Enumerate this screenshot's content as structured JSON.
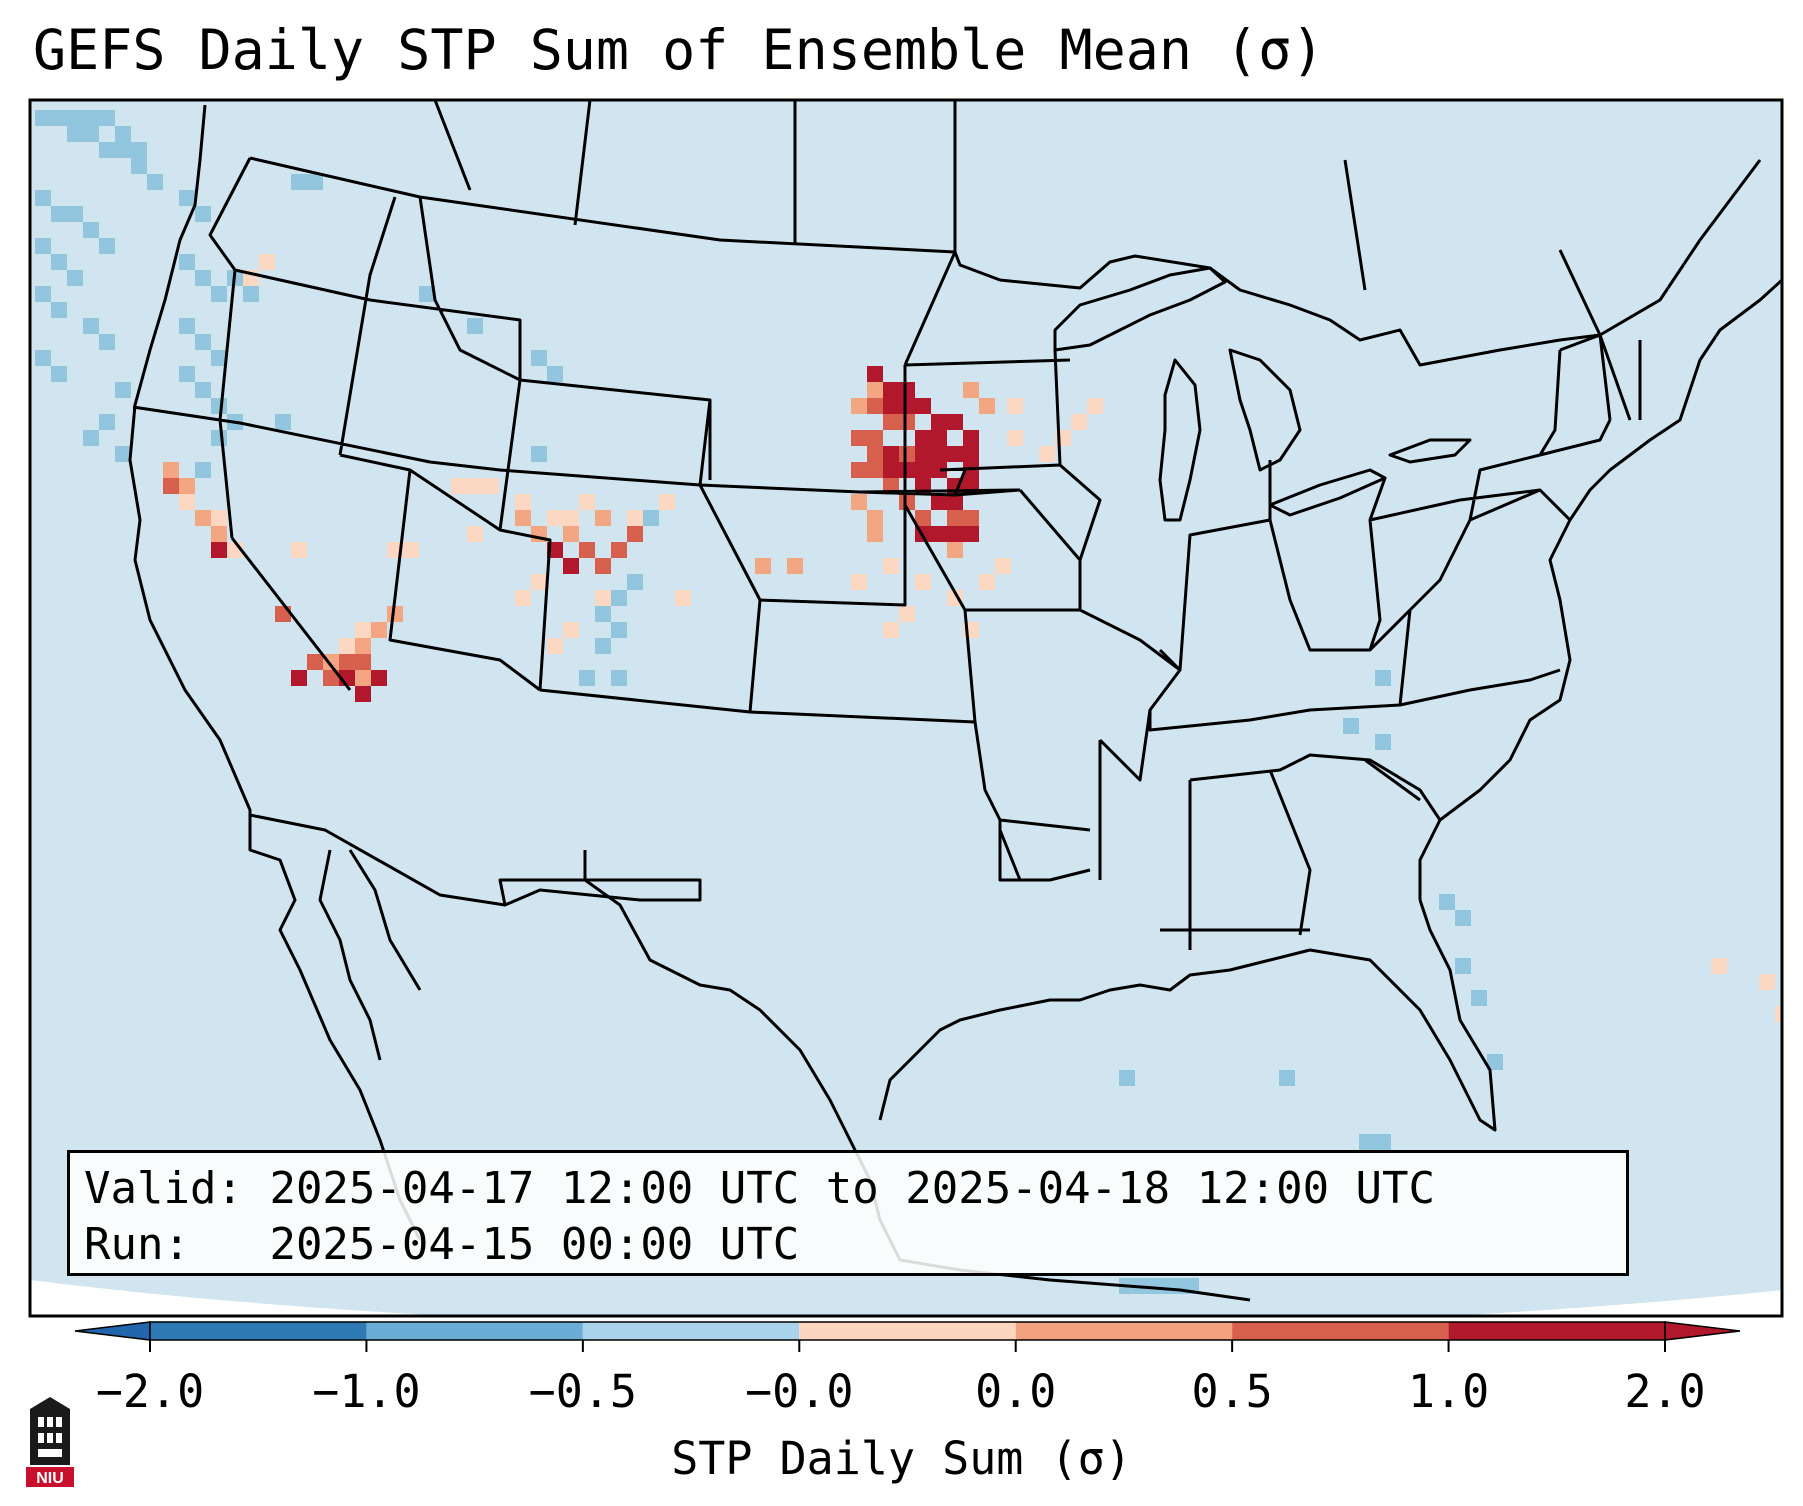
{
  "title": "GEFS Daily STP Sum of Ensemble Mean (σ)",
  "info": {
    "valid_label": "Valid:",
    "valid_value": "2025-04-17 12:00 UTC to 2025-04-18 12:00 UTC",
    "run_label": "Run:",
    "run_value": "2025-04-15 00:00 UTC"
  },
  "colorbar": {
    "label": "STP Daily Sum (σ)",
    "ticks": [
      "−2.0",
      "−1.0",
      "−0.5",
      "−0.0",
      "0.0",
      "0.5",
      "1.0",
      "2.0"
    ],
    "colors": [
      "#2f79b5",
      "#6aaed6",
      "#a9d3ea",
      "#f7f7f7",
      "#fcd6c1",
      "#f3a27f",
      "#d6604d",
      "#b2182b"
    ],
    "under_color": "#2166ac",
    "over_color": "#b2182b"
  },
  "map": {
    "background_color": "#d1e5f0",
    "cell_colors": {
      "light_blue": "#92c5de",
      "pale_red": "#fcd7c2",
      "light_red": "#f4a582",
      "red": "#d6604d",
      "dark_red": "#b2182b"
    }
  },
  "logo": {
    "text": "NIU",
    "color": "#c8102e"
  }
}
